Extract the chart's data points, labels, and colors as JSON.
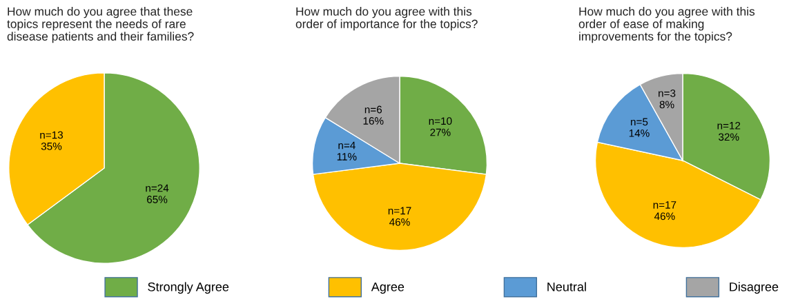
{
  "chart_data": [
    {
      "type": "pie",
      "title": "How much do you agree that these\ntopics represent the needs of rare\ndisease patients and their families?",
      "categories": [
        null,
        null
      ],
      "values": [
        24,
        13
      ],
      "colors": [
        "#70ad47",
        "#ffc000"
      ],
      "value_labels": [
        "n=24\n65%",
        "n=13\n35%"
      ]
    },
    {
      "type": "pie",
      "title": "How much do you agree with this\norder of importance for the topics?",
      "categories": [
        "Strongly Agree",
        "Agree",
        "Neutral",
        "Disagree"
      ],
      "values": [
        10,
        17,
        4,
        6
      ],
      "colors": [
        "#70ad47",
        "#ffc000",
        "#5b9bd5",
        "#a5a5a5"
      ],
      "value_labels": [
        "n=10\n27%",
        "n=17\n46%",
        "n=4\n11%",
        "n=6\n16%"
      ],
      "legend": "bottom"
    },
    {
      "type": "pie",
      "title": "How much do you agree with this\norder of ease of making\nimprovements for the topics?",
      "categories": [
        null,
        null,
        null,
        null
      ],
      "values": [
        12,
        17,
        5,
        3
      ],
      "colors": [
        "#70ad47",
        "#ffc000",
        "#5b9bd5",
        "#a5a5a5"
      ],
      "value_labels": [
        "n=12\n32%",
        "n=17\n46%",
        "n=5\n14%",
        "n=3\n8%"
      ]
    }
  ]
}
